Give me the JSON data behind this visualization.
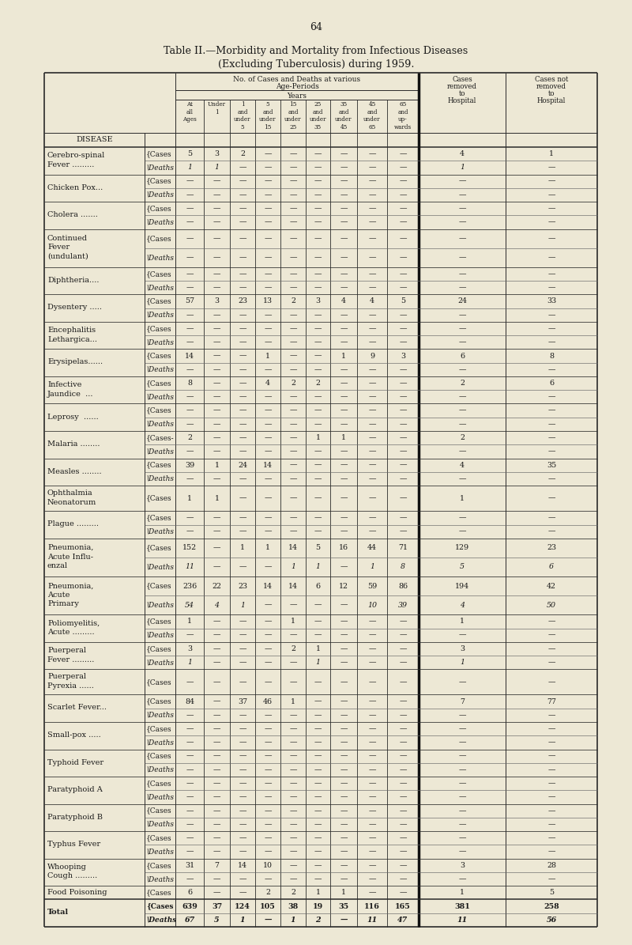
{
  "page_number": "64",
  "title_line1": "Table II.—Morbidity and Mortality from Infectious Diseases",
  "title_line2": "(Excluding Tuberculosis) during 1959.",
  "bg_color": "#ede8d5",
  "diseases": [
    {
      "name_lines": [
        "Cerebro-spinal",
        "Fever ........."
      ],
      "cases": [
        "5",
        "3",
        "2",
        "—",
        "—",
        "—",
        "—",
        "—",
        "—",
        "4",
        "1"
      ],
      "deaths": [
        "1",
        "1",
        "—",
        "—",
        "—",
        "—",
        "—",
        "—",
        "—",
        "1",
        "—"
      ],
      "has_deaths": true
    },
    {
      "name_lines": [
        "Chicken Pox..."
      ],
      "cases": [
        "—",
        "—",
        "—",
        "—",
        "—",
        "—",
        "—",
        "—",
        "—",
        "—",
        "—"
      ],
      "deaths": [
        "—",
        "—",
        "—",
        "—",
        "—",
        "—",
        "—",
        "—",
        "—",
        "—",
        "—"
      ],
      "has_deaths": true
    },
    {
      "name_lines": [
        "Cholera ....... "
      ],
      "cases": [
        "—",
        "—",
        "—",
        "—",
        "—",
        "—",
        "—",
        "—",
        "—",
        "—",
        "—"
      ],
      "deaths": [
        "—",
        "—",
        "—",
        "—",
        "—",
        "—",
        "—",
        "—",
        "—",
        "—",
        "—"
      ],
      "has_deaths": true
    },
    {
      "name_lines": [
        "Continued",
        "Fever",
        "(undulant)"
      ],
      "cases": [
        "—",
        "—",
        "—",
        "—",
        "—",
        "—",
        "—",
        "—",
        "—",
        "—",
        "—"
      ],
      "deaths": [
        "—",
        "—",
        "—",
        "—",
        "—",
        "—",
        "—",
        "—",
        "—",
        "—",
        "—"
      ],
      "has_deaths": true
    },
    {
      "name_lines": [
        "Diphtheria...."
      ],
      "cases": [
        "—",
        "—",
        "—",
        "—",
        "—",
        "—",
        "—",
        "—",
        "—",
        "—",
        "—"
      ],
      "deaths": [
        "—",
        "—",
        "—",
        "—",
        "—",
        "—",
        "—",
        "—",
        "—",
        "—",
        "—"
      ],
      "has_deaths": true
    },
    {
      "name_lines": [
        "Dysentery ....."
      ],
      "cases": [
        "57",
        "3",
        "23",
        "13",
        "2",
        "3",
        "4",
        "4",
        "5",
        "24",
        "33"
      ],
      "deaths": [
        "—",
        "—",
        "—",
        "—",
        "—",
        "—",
        "—",
        "—",
        "—",
        "—",
        "—"
      ],
      "has_deaths": true
    },
    {
      "name_lines": [
        "Encephalitis",
        "Lethargica..."
      ],
      "cases": [
        "—",
        "—",
        "—",
        "—",
        "—",
        "—",
        "—",
        "—",
        "—",
        "—",
        "—"
      ],
      "deaths": [
        "—",
        "—",
        "—",
        "—",
        "—",
        "—",
        "—",
        "—",
        "—",
        "—",
        "—"
      ],
      "has_deaths": true
    },
    {
      "name_lines": [
        "Erysipelas......"
      ],
      "cases": [
        "14",
        "—",
        "—",
        "1",
        "—",
        "—",
        "1",
        "9",
        "3",
        "6",
        "8"
      ],
      "deaths": [
        "—",
        "—",
        "—",
        "—",
        "—",
        "—",
        "—",
        "—",
        "—",
        "—",
        "—"
      ],
      "has_deaths": true
    },
    {
      "name_lines": [
        "Infective",
        "Jaundice  ..."
      ],
      "cases": [
        "8",
        "—",
        "—",
        "4",
        "2",
        "2",
        "—",
        "—",
        "—",
        "2",
        "6"
      ],
      "deaths": [
        "—",
        "—",
        "—",
        "—",
        "—",
        "—",
        "—",
        "—",
        "—",
        "—",
        "—"
      ],
      "has_deaths": true
    },
    {
      "name_lines": [
        "Leprosy  ......"
      ],
      "cases": [
        "—",
        "—",
        "—",
        "—",
        "—",
        "—",
        "—",
        "—",
        "—",
        "—",
        "—"
      ],
      "deaths": [
        "—",
        "—",
        "—",
        "—",
        "—",
        "—",
        "—",
        "—",
        "—",
        "—",
        "—"
      ],
      "has_deaths": true
    },
    {
      "name_lines": [
        "Malaria ........"
      ],
      "cases_label": "Cases-",
      "cases": [
        "2",
        "—",
        "—",
        "—",
        "—",
        "1",
        "1",
        "—",
        "—",
        "2",
        "—"
      ],
      "deaths": [
        "—",
        "—",
        "—",
        "—",
        "—",
        "—",
        "—",
        "—",
        "—",
        "—",
        "—"
      ],
      "has_deaths": true
    },
    {
      "name_lines": [
        "Measles ........"
      ],
      "cases": [
        "39",
        "1",
        "24",
        "14",
        "—",
        "—",
        "—",
        "—",
        "—",
        "4",
        "35"
      ],
      "deaths": [
        "—",
        "—",
        "—",
        "—",
        "—",
        "—",
        "—",
        "—",
        "—",
        "—",
        "—"
      ],
      "has_deaths": true
    },
    {
      "name_lines": [
        "Ophthalmia",
        "Neonatorum"
      ],
      "cases": [
        "1",
        "1",
        "—",
        "—",
        "—",
        "—",
        "—",
        "—",
        "—",
        "1",
        "—"
      ],
      "deaths": null,
      "has_deaths": false
    },
    {
      "name_lines": [
        "Plague ........."
      ],
      "cases": [
        "—",
        "—",
        "—",
        "—",
        "—",
        "—",
        "—",
        "—",
        "—",
        "—",
        "—"
      ],
      "deaths": [
        "—",
        "—",
        "—",
        "—",
        "—",
        "—",
        "—",
        "—",
        "—",
        "—",
        "—"
      ],
      "has_deaths": true
    },
    {
      "name_lines": [
        "Pneumonia,",
        "Acute Influ-",
        "enzal"
      ],
      "cases": [
        "152",
        "—",
        "1",
        "1",
        "14",
        "5",
        "16",
        "44",
        "71",
        "129",
        "23"
      ],
      "deaths": [
        "11",
        "—",
        "—",
        "—",
        "1",
        "1",
        "—",
        "1",
        "8",
        "5",
        "6"
      ],
      "has_deaths": true
    },
    {
      "name_lines": [
        "Pneumonia,",
        "Acute",
        "Primary"
      ],
      "cases": [
        "236",
        "22",
        "23",
        "14",
        "14",
        "6",
        "12",
        "59",
        "86",
        "194",
        "42"
      ],
      "deaths": [
        "54",
        "4",
        "1",
        "—",
        "—",
        "—",
        "—",
        "10",
        "39",
        "4",
        "50"
      ],
      "has_deaths": true
    },
    {
      "name_lines": [
        "Poliomyelitis,",
        "Acute ........."
      ],
      "cases": [
        "1",
        "—",
        "—",
        "—",
        "1",
        "—",
        "—",
        "—",
        "—",
        "1",
        "—"
      ],
      "deaths": [
        "—",
        "—",
        "—",
        "—",
        "—",
        "—",
        "—",
        "—",
        "—",
        "—",
        "—"
      ],
      "has_deaths": true
    },
    {
      "name_lines": [
        "Puerperal",
        "Fever ........."
      ],
      "cases": [
        "3",
        "—",
        "—",
        "—",
        "2",
        "1",
        "—",
        "—",
        "—",
        "3",
        "—"
      ],
      "deaths": [
        "1",
        "—",
        "—",
        "—",
        "—",
        "1",
        "—",
        "—",
        "—",
        "1",
        "—"
      ],
      "has_deaths": true
    },
    {
      "name_lines": [
        "Puerperal",
        "Pyrexia ......"
      ],
      "cases": [
        "—",
        "—",
        "—",
        "—",
        "—",
        "—",
        "—",
        "—",
        "—",
        "—",
        "—"
      ],
      "deaths": null,
      "has_deaths": false
    },
    {
      "name_lines": [
        "Scarlet Fever..."
      ],
      "cases": [
        "84",
        "—",
        "37",
        "46",
        "1",
        "—",
        "—",
        "—",
        "—",
        "7",
        "77"
      ],
      "deaths": [
        "—",
        "—",
        "—",
        "—",
        "—",
        "—",
        "—",
        "—",
        "—",
        "—",
        "—"
      ],
      "has_deaths": true
    },
    {
      "name_lines": [
        "Small-pox ....."
      ],
      "cases": [
        "—",
        "—",
        "—",
        "—",
        "—",
        "—",
        "—",
        "—",
        "—",
        "—",
        "—"
      ],
      "deaths": [
        "—",
        "—",
        "—",
        "—",
        "—",
        "—",
        "—",
        "—",
        "—",
        "—",
        "—"
      ],
      "has_deaths": true
    },
    {
      "name_lines": [
        "Typhoid Fever"
      ],
      "cases": [
        "—",
        "—",
        "—",
        "—",
        "—",
        "—",
        "—",
        "—",
        "—",
        "—",
        "—"
      ],
      "deaths": [
        "—",
        "—",
        "—",
        "—",
        "—",
        "—",
        "—",
        "—",
        "—",
        "—",
        "—"
      ],
      "has_deaths": true
    },
    {
      "name_lines": [
        "Paratyphoid A"
      ],
      "cases": [
        "—",
        "—",
        "—",
        "—",
        "—",
        "—",
        "—",
        "—",
        "—",
        "—",
        "—"
      ],
      "deaths": [
        "—",
        "—",
        "—",
        "—",
        "—",
        "—",
        "—",
        "—",
        "—",
        "—",
        "—"
      ],
      "has_deaths": true
    },
    {
      "name_lines": [
        "Paratyphoid B"
      ],
      "cases": [
        "—",
        "—",
        "—",
        "—",
        "—",
        "—",
        "—",
        "—",
        "—",
        "—",
        "—"
      ],
      "deaths": [
        "—",
        "—",
        "—",
        "—",
        "—",
        "—",
        "—",
        "—",
        "—",
        "—",
        "—"
      ],
      "has_deaths": true
    },
    {
      "name_lines": [
        "Typhus Fever"
      ],
      "cases": [
        "—",
        "—",
        "—",
        "—",
        "—",
        "—",
        "—",
        "—",
        "—",
        "—",
        "—"
      ],
      "deaths": [
        "—",
        "—",
        "—",
        "—",
        "—",
        "—",
        "—",
        "—",
        "—",
        "—",
        "—"
      ],
      "has_deaths": true
    },
    {
      "name_lines": [
        "Whooping",
        "Cough ........."
      ],
      "cases": [
        "31",
        "7",
        "14",
        "10",
        "—",
        "—",
        "—",
        "—",
        "—",
        "3",
        "28"
      ],
      "deaths": [
        "—",
        "—",
        "—",
        "—",
        "—",
        "—",
        "—",
        "—",
        "—",
        "—",
        "—"
      ],
      "has_deaths": true
    },
    {
      "name_lines": [
        "Food Poisoning"
      ],
      "cases": [
        "6",
        "—",
        "—",
        "2",
        "2",
        "1",
        "1",
        "—",
        "—",
        "1",
        "5"
      ],
      "deaths": null,
      "has_deaths": false
    },
    {
      "name_lines": [
        "Total"
      ],
      "cases": [
        "639",
        "37",
        "124",
        "105",
        "38",
        "19",
        "35",
        "116",
        "165",
        "381",
        "258"
      ],
      "deaths": [
        "67",
        "5",
        "1",
        "—",
        "1",
        "2",
        "—",
        "11",
        "47",
        "11",
        "56"
      ],
      "has_deaths": true,
      "is_total": true
    }
  ]
}
